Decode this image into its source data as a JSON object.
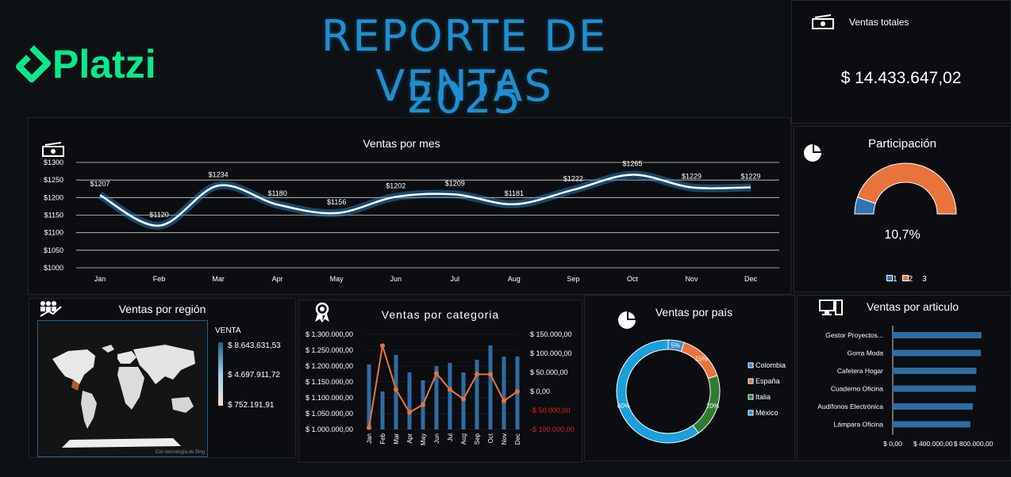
{
  "header": {
    "logo_text": "Platzi",
    "title_line1": "REPORTE DE VENTAS",
    "title_line2": "2025"
  },
  "total": {
    "label": "Ventas totales",
    "value": "$ 14.433.647,02",
    "icon": "cash-icon"
  },
  "participation": {
    "title": "Participación",
    "value": "10,7%",
    "legend": [
      "1",
      "2",
      "3"
    ],
    "colors": [
      "#2e75b6",
      "#e8743b",
      "#ffffff"
    ]
  },
  "monthly": {
    "title": "Ventas por mes"
  },
  "region": {
    "title": "Ventas por región",
    "legend_title": "VENTA",
    "legend_max": "$ 8.643.631,53",
    "legend_mid": "$ 4.697.911,72",
    "legend_min": "$ 752.191,91",
    "attribution": "Con tecnología de Bing"
  },
  "category": {
    "title": "Ventas por categoria"
  },
  "country": {
    "title": "Ventas por país"
  },
  "article": {
    "title": "Ventas por articulo"
  },
  "chart_data": [
    {
      "type": "line",
      "title": "Ventas por mes",
      "categories": [
        "Jan",
        "Feb",
        "Mar",
        "Apr",
        "May",
        "Jun",
        "Jul",
        "Aug",
        "Sep",
        "Oct",
        "Nov",
        "Dec"
      ],
      "values": [
        1207,
        1120,
        1234,
        1180,
        1156,
        1202,
        1209,
        1181,
        1222,
        1265,
        1229,
        1229
      ],
      "data_labels": [
        "$1207",
        "$1120",
        "$1234",
        "$1180",
        "$1156",
        "$1202",
        "$1209",
        "$1181",
        "$1222",
        "$1265",
        "$1229",
        "$1229"
      ],
      "yticks": [
        "$1000",
        "$1050",
        "$1100",
        "$1150",
        "$1200",
        "$1250",
        "$1300"
      ],
      "ylim": [
        1000,
        1300
      ],
      "grid": true,
      "color": "#ffffff"
    },
    {
      "type": "bar",
      "title": "Ventas por categoria",
      "categories": [
        "Jan",
        "Feb",
        "Mar",
        "Apr",
        "May",
        "Jun",
        "Jul",
        "Aug",
        "Sep",
        "Oct",
        "Nov",
        "Dec"
      ],
      "series": [
        {
          "values": [
            1205000,
            1120000,
            1235000,
            1180000,
            1155000,
            1200000,
            1210000,
            1180000,
            1220000,
            1265000,
            1230000,
            1230000
          ],
          "axis": "left",
          "color": "#2e6da4"
        },
        {
          "values": [
            -95000,
            120000,
            5000,
            -55000,
            -35000,
            47000,
            5000,
            -20000,
            45000,
            45000,
            -25000,
            0
          ],
          "axis": "right",
          "color": "#e8743b"
        }
      ],
      "yticks_left": [
        "$ 1.000.000,00",
        "$ 1.050.000,00",
        "$ 1.100.000,00",
        "$ 1.150.000,00",
        "$ 1.200.000,00",
        "$ 1.250.000,00",
        "$ 1.300.000,00"
      ],
      "ylim_left": [
        1000000,
        1300000
      ],
      "yticks_right": [
        "-$ 100.000,00",
        "-$ 50.000,00",
        "$ 0,00",
        "$ 50.000,00",
        "$ 100.000,00",
        "$ 150.000,00"
      ],
      "ylim_right": [
        -100000,
        150000
      ]
    },
    {
      "type": "pie",
      "title": "Ventas por país",
      "categories": [
        "Colombia",
        "España",
        "Italia",
        "México"
      ],
      "values": [
        5,
        15,
        20,
        60
      ],
      "labels": [
        "5%",
        "15%",
        "20%",
        "60%"
      ],
      "colors": [
        "#2f8fd0",
        "#e8743b",
        "#2f7d32",
        "#1aa0dc"
      ],
      "legend": "right"
    },
    {
      "type": "bar",
      "orientation": "horizontal",
      "title": "Ventas por articulo",
      "categories": [
        "Gestor Proyectos...",
        "Gorra Moda",
        "Cafetera Hogar",
        "Cuaderno Oficina",
        "Audífonos Electrónica",
        "Lámpara Oficina"
      ],
      "values": [
        880000,
        875000,
        830000,
        825000,
        795000,
        770000
      ],
      "xticks": [
        "$ 0,00",
        "$ 400.000,00",
        "$ 800.000,00"
      ],
      "xlim": [
        0,
        1000000
      ],
      "color": "#2e6da4"
    }
  ]
}
